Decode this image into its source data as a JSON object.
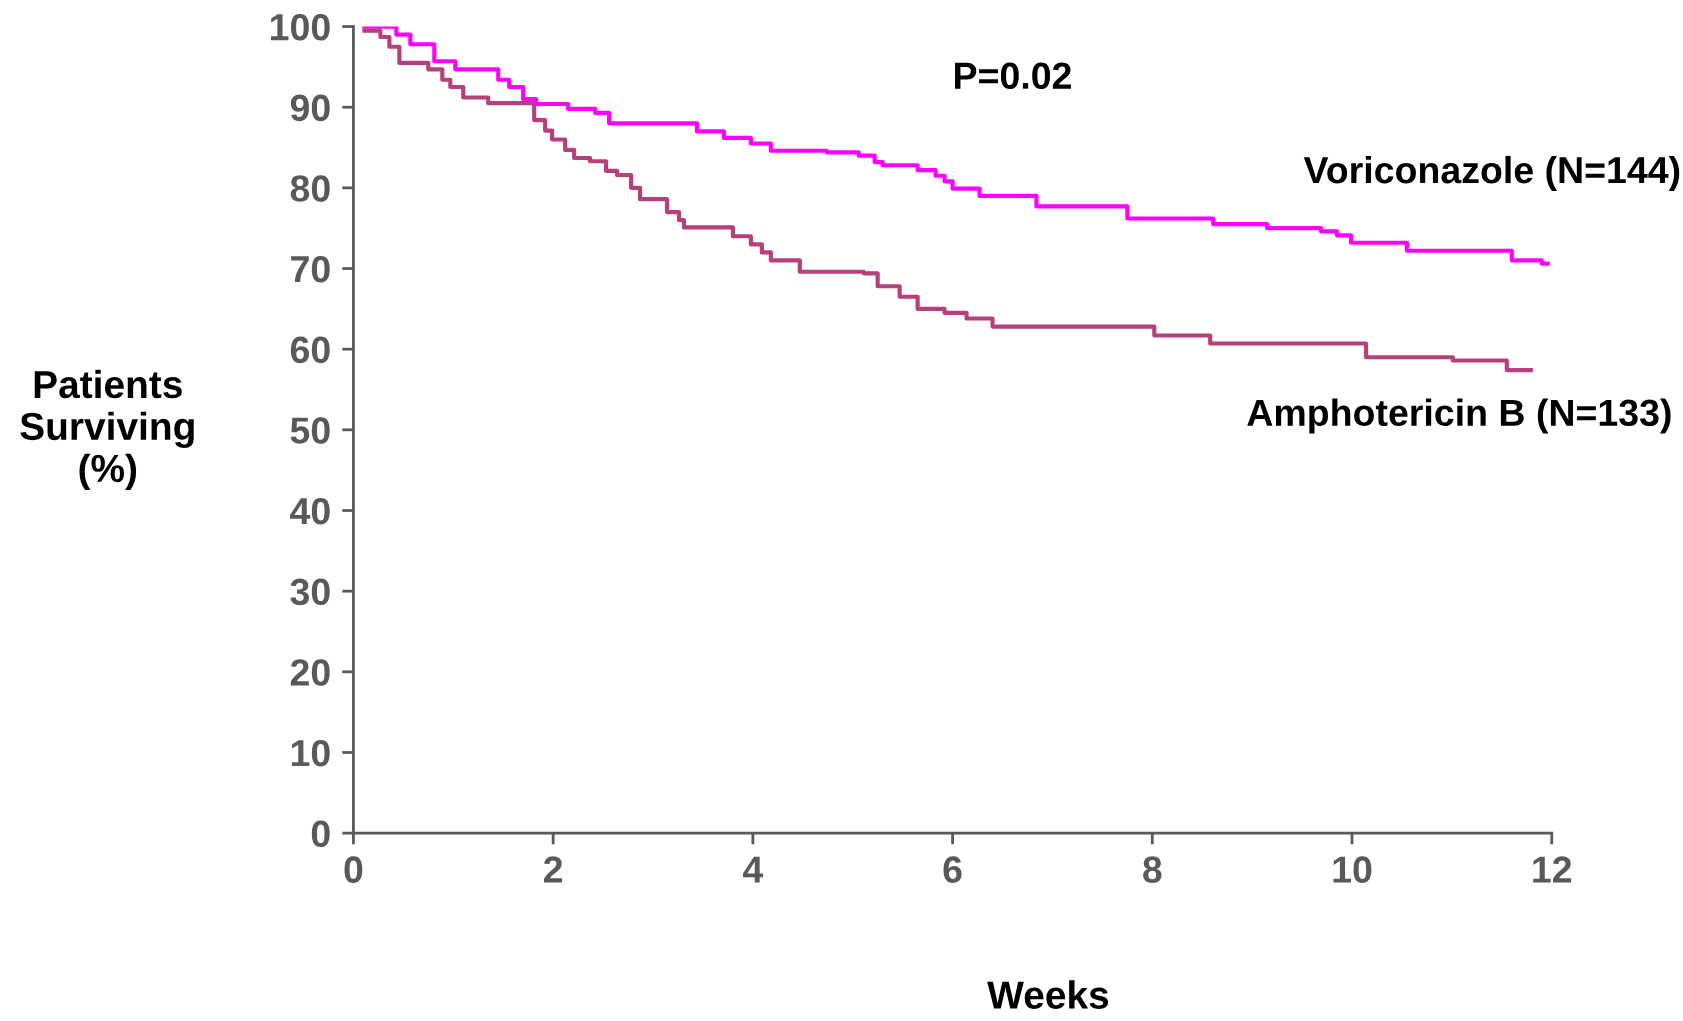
{
  "chart_data": {
    "type": "step",
    "xlabel": "Weeks",
    "ylabel": "Patients\nSurviving\n(%)",
    "xlim": [
      0,
      12
    ],
    "ylim": [
      0,
      100
    ],
    "xticks": [
      0,
      2,
      4,
      6,
      8,
      10,
      12
    ],
    "yticks": [
      0,
      10,
      20,
      30,
      40,
      50,
      60,
      70,
      80,
      90,
      100
    ],
    "grid": false,
    "legend": false,
    "annotations": [
      "P=0.02"
    ],
    "series": [
      {
        "name": "Voriconazole (N=144)",
        "color": "#ff00ff",
        "x": [
          0.11,
          0.43,
          0.57,
          0.81,
          1.02,
          1.45,
          1.56,
          1.7,
          1.83,
          2.15,
          2.42,
          2.56,
          3.44,
          3.71,
          3.98,
          4.18,
          4.74,
          5.06,
          5.22,
          5.3,
          5.65,
          5.83,
          5.92,
          6.0,
          6.27,
          6.84,
          7.75,
          8.61,
          9.15,
          9.69,
          9.85,
          9.99,
          10.55,
          11.6,
          11.9,
          11.96
        ],
        "values": [
          100,
          99,
          97.8,
          95.7,
          94.7,
          93.4,
          92.5,
          91,
          90.4,
          89.8,
          89.3,
          88,
          87,
          86.2,
          85.5,
          84.6,
          84.4,
          84,
          83.2,
          82.8,
          82.2,
          81.5,
          80.8,
          79.9,
          79,
          77.7,
          76.2,
          75.5,
          75,
          74.6,
          74.1,
          73.2,
          72.2,
          71,
          70.6,
          70.6
        ]
      },
      {
        "name": "Amphotericin B (N=133)",
        "color": "#b5407c",
        "x": [
          0.11,
          0.27,
          0.36,
          0.46,
          0.75,
          0.89,
          0.97,
          1.1,
          1.35,
          1.81,
          1.92,
          1.99,
          2.12,
          2.21,
          2.37,
          2.53,
          2.64,
          2.78,
          2.87,
          3.14,
          3.26,
          3.31,
          3.8,
          3.98,
          4.09,
          4.18,
          4.47,
          5.11,
          5.25,
          5.47,
          5.65,
          5.92,
          6.14,
          6.4,
          8.02,
          8.58,
          10.14,
          11.01,
          11.55,
          11.79
        ],
        "values": [
          99.5,
          98.7,
          97.5,
          95.5,
          94.7,
          93.4,
          92.5,
          91.2,
          90.5,
          88.4,
          87.1,
          86,
          84.7,
          83.7,
          83.3,
          82.1,
          81.6,
          80,
          78.6,
          77,
          76,
          75.1,
          74,
          73,
          72,
          71,
          69.6,
          69.4,
          67.8,
          66.5,
          65,
          64.5,
          63.8,
          62.8,
          61.7,
          60.7,
          59,
          58.6,
          57.4,
          57.4
        ]
      }
    ]
  }
}
